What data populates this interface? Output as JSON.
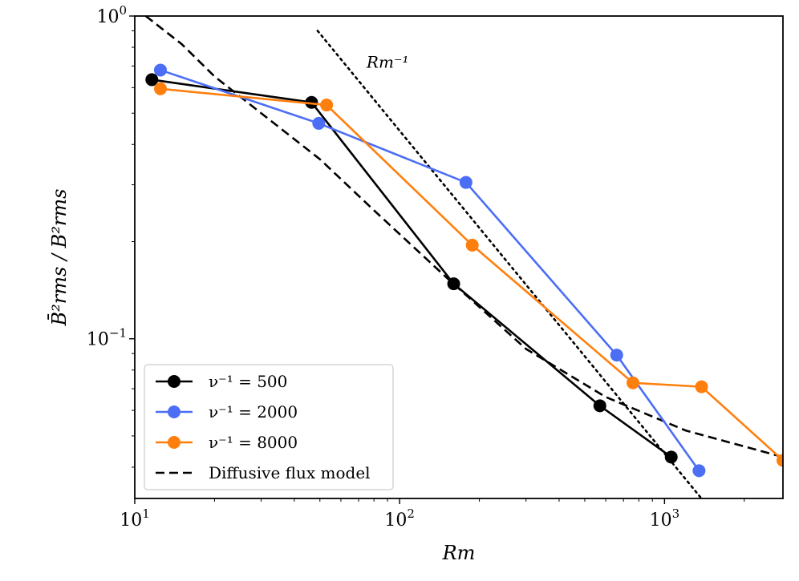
{
  "chart_data": {
    "type": "line",
    "xlabel": "Rm",
    "ylabel": "B̄²rms / B²rms",
    "xscale": "log",
    "yscale": "log",
    "xlim": [
      10,
      2800
    ],
    "ylim": [
      0.032,
      1.0
    ],
    "x_ticks": [
      {
        "value": 10,
        "base": "10",
        "exp": "1"
      },
      {
        "value": 100,
        "base": "10",
        "exp": "2"
      },
      {
        "value": 1000,
        "base": "10",
        "exp": "3"
      }
    ],
    "y_ticks": [
      {
        "value": 1.0,
        "base": "10",
        "exp": "0"
      },
      {
        "value": 0.1,
        "base": "10",
        "exp": "−1"
      }
    ],
    "grid": false,
    "legend_position": "lower-left",
    "series": [
      {
        "name": "ν⁻¹ = 500",
        "color": "#000000",
        "x": [
          11.6,
          46.5,
          160,
          570,
          1060
        ],
        "y": [
          0.635,
          0.54,
          0.148,
          0.062,
          0.043
        ]
      },
      {
        "name": "ν⁻¹ = 2000",
        "color": "#4c6ef5",
        "x": [
          12.5,
          49.5,
          178,
          660,
          1350
        ],
        "y": [
          0.68,
          0.465,
          0.305,
          0.089,
          0.039
        ]
      },
      {
        "name": "ν⁻¹ = 8000",
        "color": "#ff7f0e",
        "x": [
          12.5,
          53,
          188,
          760,
          1380,
          2800
        ],
        "y": [
          0.595,
          0.53,
          0.195,
          0.073,
          0.071,
          0.042
        ]
      }
    ],
    "model_lines": [
      {
        "name": "Diffusive flux model",
        "style": "dashed",
        "color": "#000000",
        "x": [
          11,
          15,
          20,
          30,
          50,
          80,
          150,
          300,
          600,
          1200,
          2800
        ],
        "y": [
          1.0,
          0.82,
          0.65,
          0.5,
          0.36,
          0.25,
          0.155,
          0.093,
          0.066,
          0.052,
          0.043
        ]
      },
      {
        "name": "",
        "style": "dotted",
        "color": "#000000",
        "x": [
          49,
          1370
        ],
        "y": [
          0.9,
          0.0322
        ]
      }
    ],
    "annotations": [
      {
        "text": "Rm⁻¹",
        "x": 75,
        "y": 0.72
      }
    ]
  }
}
